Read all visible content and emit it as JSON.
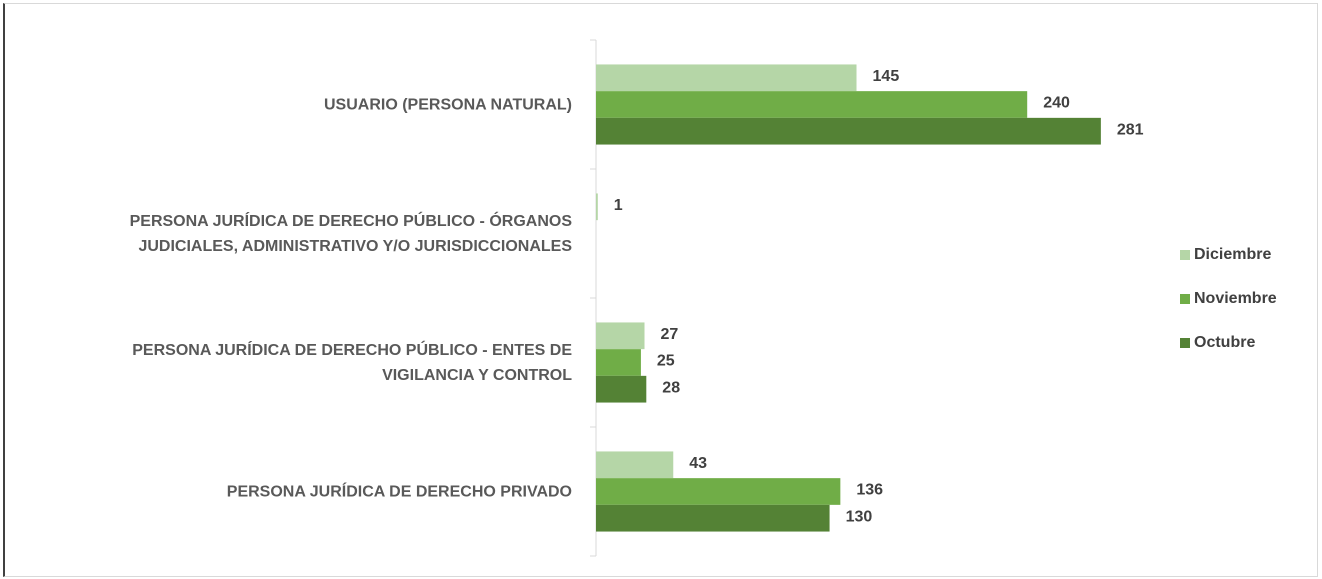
{
  "chart_data": {
    "type": "bar",
    "orientation": "horizontal",
    "categories": [
      "USUARIO (PERSONA NATURAL)",
      "PERSONA JURÍDICA DE DERECHO PÚBLICO - ÓRGANOS\nJUDICIALES, ADMINISTRATIVO Y/O JURISDICCIONALES",
      "PERSONA JURÍDICA DE DERECHO PÚBLICO - ENTES DE\nVIGILANCIA Y CONTROL",
      "PERSONA JURÍDICA DE DERECHO PRIVADO"
    ],
    "series": [
      {
        "name": "Diciembre",
        "color": "#b5d6a7",
        "values": [
          145,
          1,
          27,
          43
        ]
      },
      {
        "name": "Noviembre",
        "color": "#70ad47",
        "values": [
          240,
          null,
          25,
          136
        ]
      },
      {
        "name": "Octubre",
        "color": "#548235",
        "values": [
          281,
          null,
          28,
          130
        ]
      }
    ],
    "xlim": [
      0,
      300
    ],
    "legend": "right"
  }
}
